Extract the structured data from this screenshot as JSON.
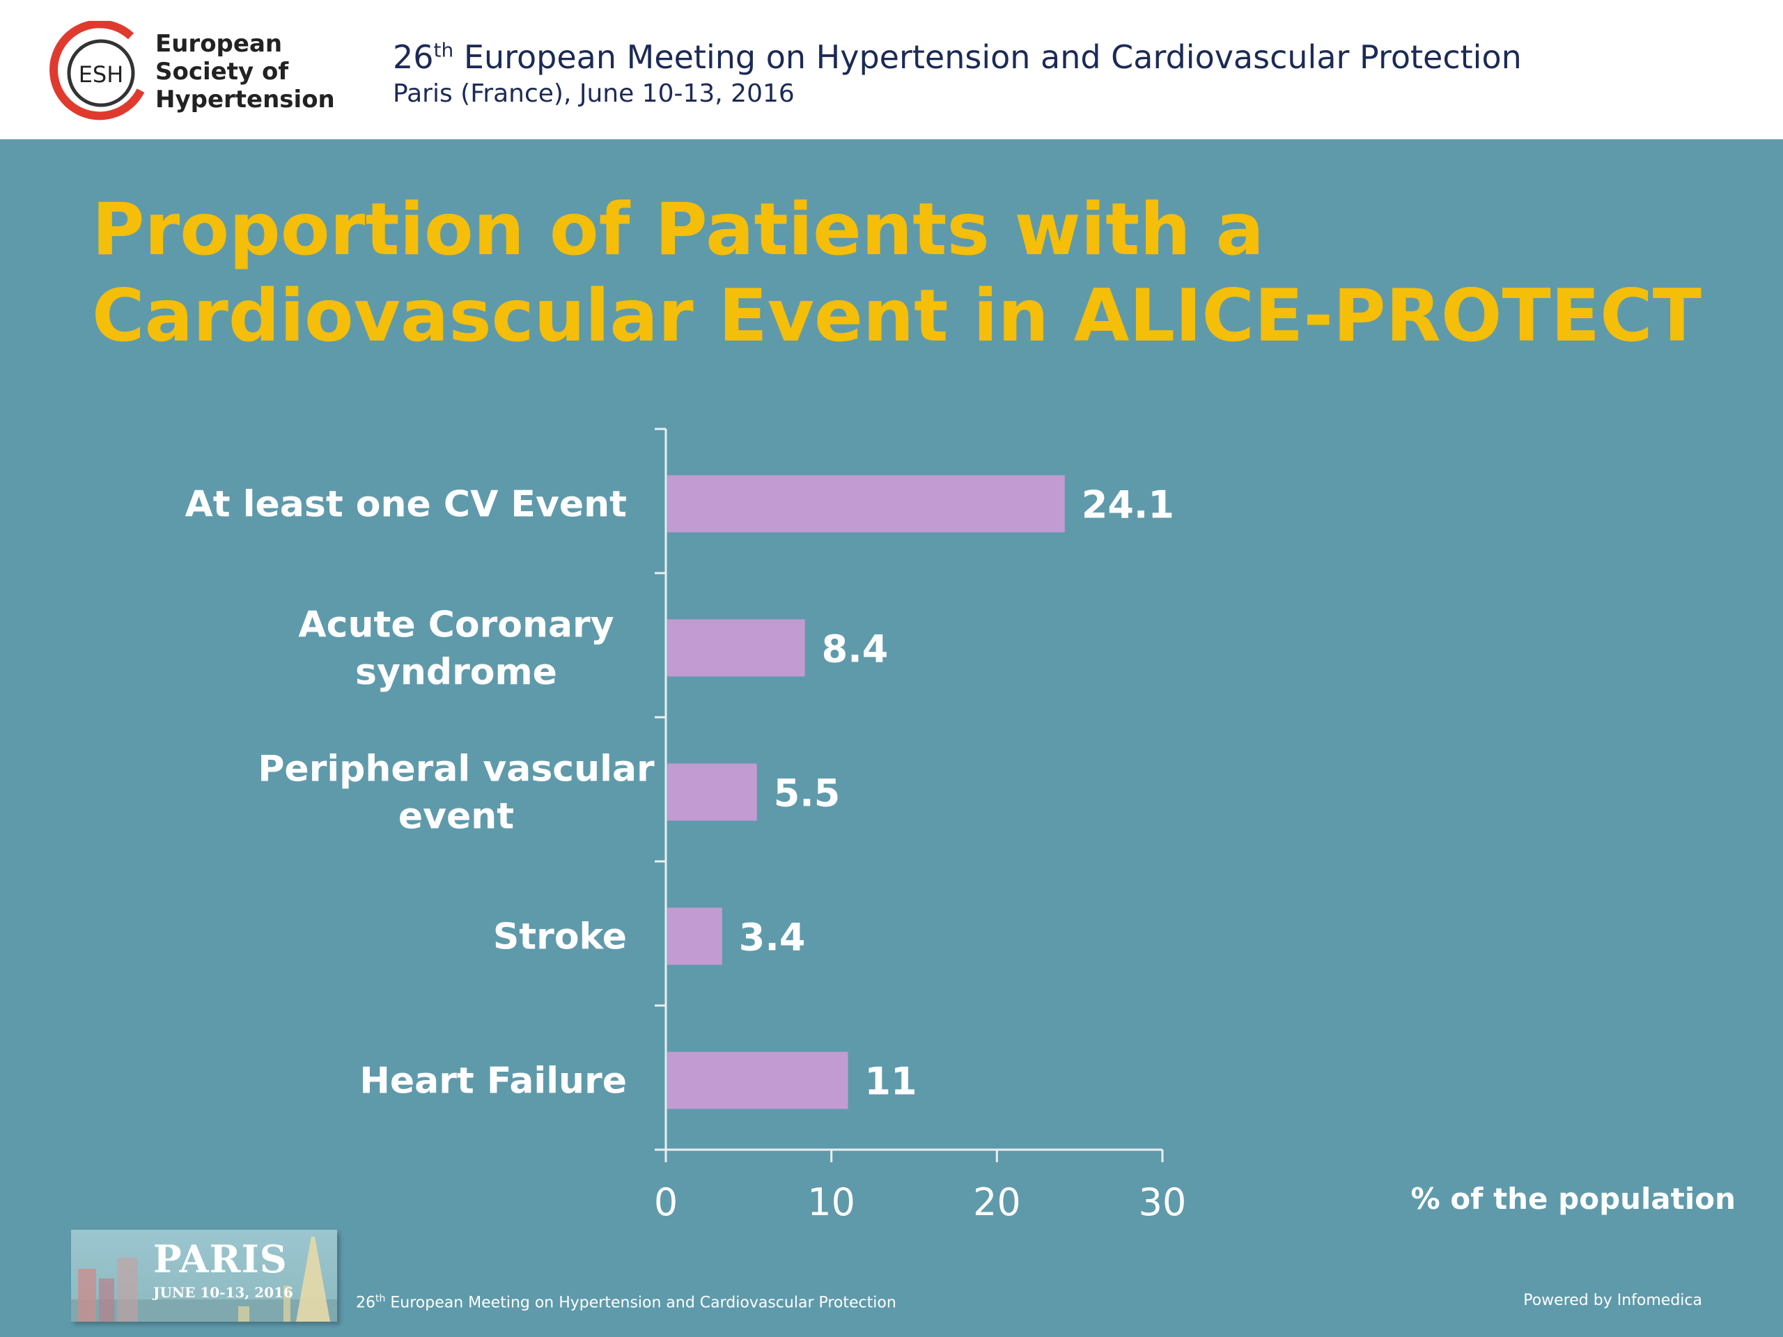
{
  "header": {
    "logo_text": "ESH",
    "org_name": [
      "European",
      "Society of",
      "Hypertension"
    ],
    "meeting_num": "26",
    "meeting_sup": "th",
    "meeting_title_rest": " European Meeting on Hypertension and Cardiovascular Protection",
    "meeting_subtitle": "Paris (France), June 10-13, 2016"
  },
  "slide": {
    "title_line1": "Proportion of Patients with a",
    "title_line2": "Cardiovascular Event in ALICE-PROTECT"
  },
  "chart_data": {
    "type": "bar",
    "orientation": "horizontal",
    "categories": [
      [
        "At least one CV Event"
      ],
      [
        "Acute Coronary",
        "syndrome"
      ],
      [
        "Peripheral vascular",
        "event"
      ],
      [
        "Stroke"
      ],
      [
        "Heart Failure"
      ]
    ],
    "values": [
      24.1,
      8.4,
      5.5,
      3.4,
      11
    ],
    "value_labels": [
      "24.1",
      "8.4",
      "5.5",
      "3.4",
      "11"
    ],
    "xlim": [
      0,
      30
    ],
    "xticks": [
      0,
      10,
      20,
      30
    ],
    "xlabel": "% of the population",
    "bar_color": "#c39bd3",
    "grid": false,
    "legend": "none"
  },
  "footer": {
    "paris_logo_word": "PARIS",
    "paris_logo_dates": "JUNE 10-13, 2016",
    "meeting_num": "26",
    "meeting_sup": "th",
    "meeting_rest": " European Meeting on Hypertension and Cardiovascular Protection",
    "powered_by": "Powered by Infomedica"
  },
  "colors": {
    "background": "#5f9aab",
    "title": "#f5be09",
    "logo_ring": "#e03a2f"
  }
}
